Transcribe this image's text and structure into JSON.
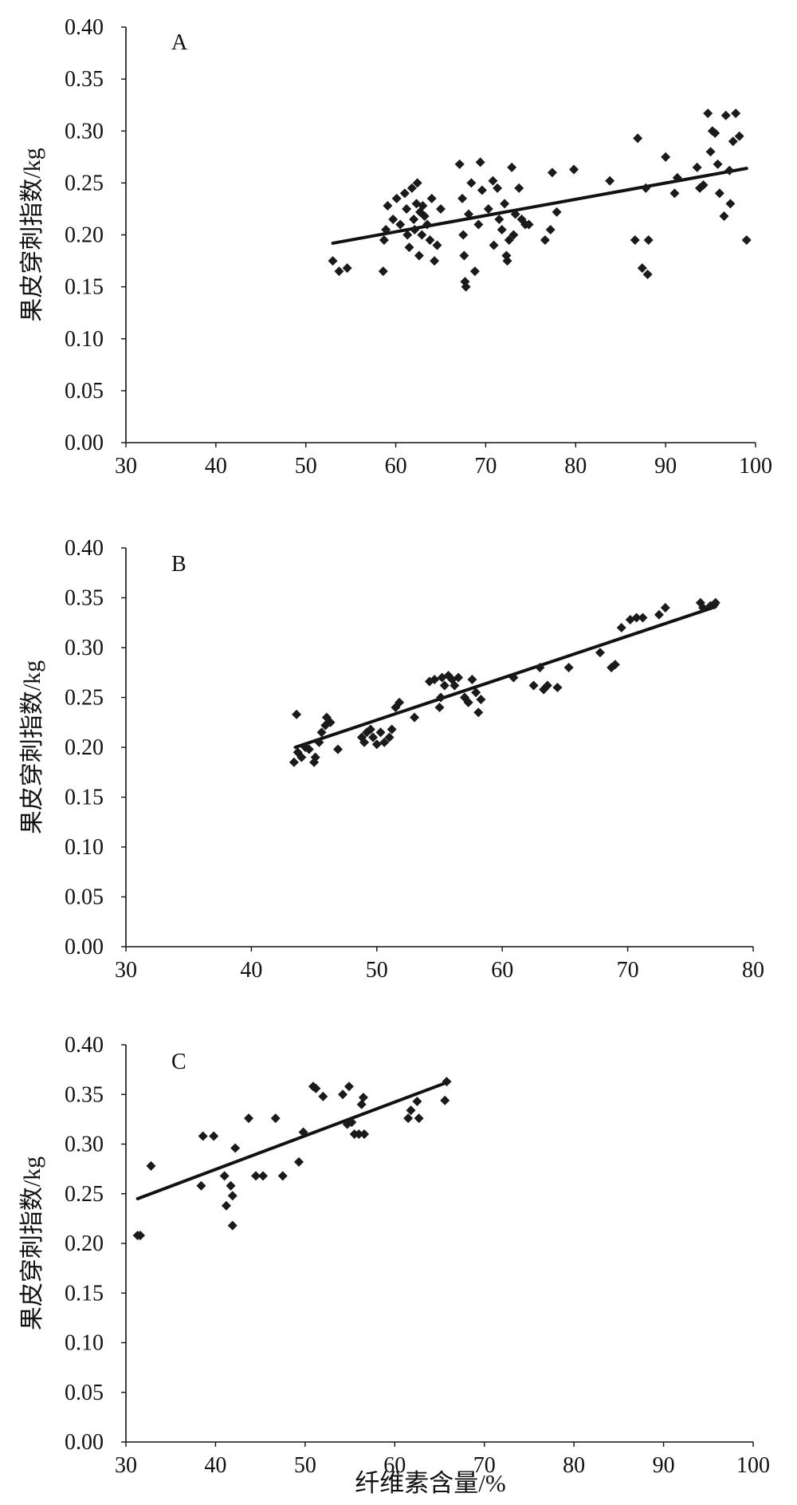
{
  "figure": {
    "xlabel": "纤维素含量/%"
  },
  "chart_data": [
    {
      "type": "scatter",
      "panel": "A",
      "ylabel": "果皮穿刺指数/kg",
      "xlim": [
        30,
        100
      ],
      "ylim": [
        0,
        0.4
      ],
      "xticks": [
        30,
        40,
        50,
        60,
        70,
        80,
        90,
        100
      ],
      "xtick_labels": [
        "30",
        "40",
        "50",
        "60",
        "70",
        "80",
        "90",
        "100"
      ],
      "yticks": [
        0,
        0.05,
        0.1,
        0.15,
        0.2,
        0.25,
        0.3,
        0.35,
        0.4
      ],
      "ytick_labels": [
        "0.00",
        "0.05",
        "0.10",
        "0.15",
        "0.20",
        "0.25",
        "0.30",
        "0.35",
        "0.40"
      ],
      "grid": false,
      "trendline": {
        "x": [
          53,
          99
        ],
        "y": [
          0.192,
          0.264
        ]
      },
      "points": [
        [
          53,
          0.175
        ],
        [
          53.7,
          0.165
        ],
        [
          54.6,
          0.168
        ],
        [
          58.6,
          0.165
        ],
        [
          58.9,
          0.205
        ],
        [
          58.7,
          0.195
        ],
        [
          59.1,
          0.228
        ],
        [
          59.7,
          0.215
        ],
        [
          60.1,
          0.235
        ],
        [
          60.5,
          0.21
        ],
        [
          61.0,
          0.24
        ],
        [
          61.2,
          0.225
        ],
        [
          61.3,
          0.2
        ],
        [
          61.5,
          0.188
        ],
        [
          61.8,
          0.245
        ],
        [
          62.0,
          0.215
        ],
        [
          62.1,
          0.205
        ],
        [
          62.3,
          0.23
        ],
        [
          62.4,
          0.25
        ],
        [
          62.6,
          0.18
        ],
        [
          62.7,
          0.222
        ],
        [
          62.9,
          0.2
        ],
        [
          63.0,
          0.228
        ],
        [
          63.2,
          0.218
        ],
        [
          63.5,
          0.21
        ],
        [
          63.8,
          0.195
        ],
        [
          64.0,
          0.235
        ],
        [
          64.3,
          0.175
        ],
        [
          64.6,
          0.19
        ],
        [
          65.0,
          0.225
        ],
        [
          67.1,
          0.268
        ],
        [
          67.4,
          0.235
        ],
        [
          67.5,
          0.2
        ],
        [
          67.6,
          0.18
        ],
        [
          67.7,
          0.155
        ],
        [
          67.8,
          0.15
        ],
        [
          68.1,
          0.22
        ],
        [
          68.4,
          0.25
        ],
        [
          68.8,
          0.165
        ],
        [
          69.2,
          0.21
        ],
        [
          69.4,
          0.27
        ],
        [
          69.6,
          0.243
        ],
        [
          70.3,
          0.225
        ],
        [
          70.8,
          0.252
        ],
        [
          70.9,
          0.19
        ],
        [
          71.3,
          0.245
        ],
        [
          71.5,
          0.215
        ],
        [
          71.8,
          0.205
        ],
        [
          72.1,
          0.23
        ],
        [
          72.3,
          0.18
        ],
        [
          72.4,
          0.175
        ],
        [
          72.6,
          0.195
        ],
        [
          72.9,
          0.265
        ],
        [
          73.1,
          0.2
        ],
        [
          73.3,
          0.22
        ],
        [
          73.7,
          0.245
        ],
        [
          74.0,
          0.215
        ],
        [
          74.4,
          0.21
        ],
        [
          74.8,
          0.21
        ],
        [
          76.6,
          0.195
        ],
        [
          77.2,
          0.205
        ],
        [
          77.4,
          0.26
        ],
        [
          77.9,
          0.222
        ],
        [
          79.8,
          0.263
        ],
        [
          83.8,
          0.252
        ],
        [
          86.6,
          0.195
        ],
        [
          86.9,
          0.293
        ],
        [
          87.4,
          0.168
        ],
        [
          87.8,
          0.245
        ],
        [
          88.0,
          0.162
        ],
        [
          88.1,
          0.195
        ],
        [
          90.0,
          0.275
        ],
        [
          91.0,
          0.24
        ],
        [
          91.3,
          0.255
        ],
        [
          93.5,
          0.265
        ],
        [
          93.8,
          0.245
        ],
        [
          94.2,
          0.248
        ],
        [
          94.7,
          0.317
        ],
        [
          95.0,
          0.28
        ],
        [
          95.2,
          0.3
        ],
        [
          95.5,
          0.298
        ],
        [
          95.8,
          0.268
        ],
        [
          96.0,
          0.24
        ],
        [
          96.5,
          0.218
        ],
        [
          96.7,
          0.315
        ],
        [
          97.1,
          0.262
        ],
        [
          97.2,
          0.23
        ],
        [
          97.5,
          0.29
        ],
        [
          97.8,
          0.317
        ],
        [
          98.2,
          0.295
        ],
        [
          99.0,
          0.195
        ]
      ]
    },
    {
      "type": "scatter",
      "panel": "B",
      "ylabel": "果皮穿刺指数/kg",
      "xlim": [
        30,
        80
      ],
      "ylim": [
        0,
        0.4
      ],
      "xticks": [
        30,
        40,
        50,
        60,
        70,
        80
      ],
      "xtick_labels": [
        "30",
        "40",
        "50",
        "60",
        "70",
        "80"
      ],
      "yticks": [
        0,
        0.05,
        0.1,
        0.15,
        0.2,
        0.25,
        0.3,
        0.35,
        0.4
      ],
      "ytick_labels": [
        "0.00",
        "0.05",
        "0.10",
        "0.15",
        "0.20",
        "0.25",
        "0.30",
        "0.35",
        "0.40"
      ],
      "grid": false,
      "trendline": {
        "x": [
          43.5,
          77
        ],
        "y": [
          0.2,
          0.341
        ]
      },
      "points": [
        [
          43.4,
          0.185
        ],
        [
          43.6,
          0.233
        ],
        [
          43.7,
          0.195
        ],
        [
          44.0,
          0.19
        ],
        [
          44.3,
          0.2
        ],
        [
          44.6,
          0.198
        ],
        [
          45.0,
          0.185
        ],
        [
          45.1,
          0.19
        ],
        [
          45.4,
          0.205
        ],
        [
          45.6,
          0.215
        ],
        [
          45.9,
          0.222
        ],
        [
          46.0,
          0.23
        ],
        [
          46.3,
          0.225
        ],
        [
          46.9,
          0.198
        ],
        [
          48.8,
          0.21
        ],
        [
          49.0,
          0.205
        ],
        [
          49.2,
          0.215
        ],
        [
          49.5,
          0.218
        ],
        [
          49.7,
          0.21
        ],
        [
          50.0,
          0.203
        ],
        [
          50.3,
          0.215
        ],
        [
          50.6,
          0.205
        ],
        [
          51.0,
          0.21
        ],
        [
          51.2,
          0.218
        ],
        [
          51.5,
          0.24
        ],
        [
          51.8,
          0.245
        ],
        [
          53.0,
          0.23
        ],
        [
          54.2,
          0.266
        ],
        [
          54.6,
          0.268
        ],
        [
          55.0,
          0.24
        ],
        [
          55.1,
          0.25
        ],
        [
          55.2,
          0.27
        ],
        [
          55.4,
          0.262
        ],
        [
          55.7,
          0.272
        ],
        [
          56.0,
          0.268
        ],
        [
          56.2,
          0.262
        ],
        [
          56.5,
          0.27
        ],
        [
          57.0,
          0.25
        ],
        [
          57.3,
          0.245
        ],
        [
          57.6,
          0.268
        ],
        [
          57.9,
          0.255
        ],
        [
          58.1,
          0.235
        ],
        [
          58.3,
          0.248
        ],
        [
          60.9,
          0.27
        ],
        [
          62.5,
          0.262
        ],
        [
          63.0,
          0.28
        ],
        [
          63.3,
          0.258
        ],
        [
          63.6,
          0.262
        ],
        [
          64.4,
          0.26
        ],
        [
          65.3,
          0.28
        ],
        [
          67.8,
          0.295
        ],
        [
          68.7,
          0.28
        ],
        [
          69.0,
          0.283
        ],
        [
          69.5,
          0.32
        ],
        [
          70.2,
          0.328
        ],
        [
          70.7,
          0.33
        ],
        [
          71.2,
          0.33
        ],
        [
          72.5,
          0.333
        ],
        [
          73.0,
          0.34
        ],
        [
          75.8,
          0.345
        ],
        [
          76.0,
          0.34
        ],
        [
          76.6,
          0.342
        ],
        [
          76.9,
          0.343
        ],
        [
          77.0,
          0.345
        ]
      ]
    },
    {
      "type": "scatter",
      "panel": "C",
      "ylabel": "果皮穿刺指数/kg",
      "xlim": [
        30,
        100
      ],
      "ylim": [
        0,
        0.4
      ],
      "xticks": [
        30,
        40,
        50,
        60,
        70,
        80,
        90,
        100
      ],
      "xtick_labels": [
        "30",
        "40",
        "50",
        "60",
        "70",
        "80",
        "90",
        "100"
      ],
      "yticks": [
        0,
        0.05,
        0.1,
        0.15,
        0.2,
        0.25,
        0.3,
        0.35,
        0.4
      ],
      "ytick_labels": [
        "0.00",
        "0.05",
        "0.10",
        "0.15",
        "0.20",
        "0.25",
        "0.30",
        "0.35",
        "0.40"
      ],
      "grid": false,
      "trendline": {
        "x": [
          31.3,
          65.8
        ],
        "y": [
          0.245,
          0.362
        ]
      },
      "points": [
        [
          31.3,
          0.208
        ],
        [
          31.6,
          0.208
        ],
        [
          32.8,
          0.278
        ],
        [
          38.4,
          0.258
        ],
        [
          38.6,
          0.308
        ],
        [
          39.8,
          0.308
        ],
        [
          41.0,
          0.268
        ],
        [
          41.2,
          0.238
        ],
        [
          41.7,
          0.258
        ],
        [
          41.9,
          0.248
        ],
        [
          41.9,
          0.218
        ],
        [
          42.2,
          0.296
        ],
        [
          43.7,
          0.326
        ],
        [
          44.5,
          0.268
        ],
        [
          45.3,
          0.268
        ],
        [
          46.7,
          0.326
        ],
        [
          47.5,
          0.268
        ],
        [
          49.3,
          0.282
        ],
        [
          49.8,
          0.312
        ],
        [
          50.9,
          0.358
        ],
        [
          51.2,
          0.356
        ],
        [
          52.0,
          0.348
        ],
        [
          54.2,
          0.35
        ],
        [
          54.7,
          0.32
        ],
        [
          54.9,
          0.358
        ],
        [
          55.2,
          0.322
        ],
        [
          55.5,
          0.31
        ],
        [
          56.0,
          0.31
        ],
        [
          56.3,
          0.34
        ],
        [
          56.5,
          0.347
        ],
        [
          56.6,
          0.31
        ],
        [
          61.5,
          0.326
        ],
        [
          61.8,
          0.334
        ],
        [
          62.5,
          0.343
        ],
        [
          62.7,
          0.326
        ],
        [
          65.6,
          0.344
        ],
        [
          65.8,
          0.363
        ]
      ]
    }
  ]
}
